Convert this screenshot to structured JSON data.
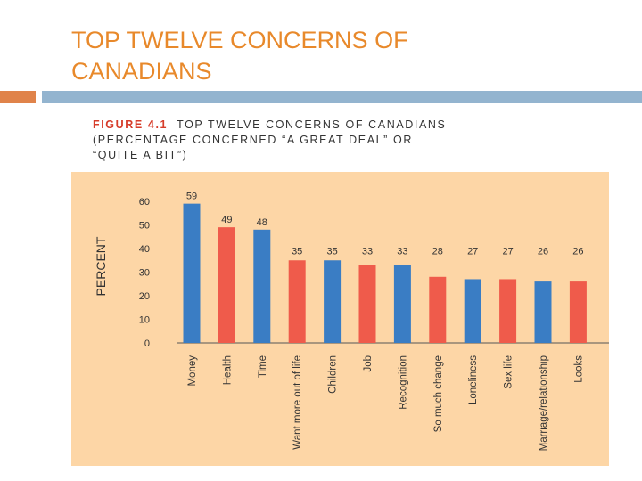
{
  "slide": {
    "title_line1": "TOP TWELVE CONCERNS OF",
    "title_line2": "CANADIANS"
  },
  "colors": {
    "title": "#e8892b",
    "accent_orange": "#e0834a",
    "accent_blue": "#93b4cf",
    "chart_background": "#fdd6a6",
    "bar_blue": "#3a7dc4",
    "bar_red": "#ef5b4b"
  },
  "figure": {
    "label": "FIGURE 4.1",
    "caption_line1": "TOP TWELVE CONCERNS OF CANADIANS",
    "caption_line2": "(PERCENTAGE CONCERNED “A GREAT DEAL” OR",
    "caption_line3": "“QUITE A BIT”)"
  },
  "chart_data": {
    "type": "bar",
    "title": "TOP TWELVE CONCERNS OF CANADIANS (PERCENTAGE CONCERNED “A GREAT DEAL” OR “QUITE A BIT”)",
    "xlabel": "",
    "ylabel": "PERCENT",
    "ylim": [
      0,
      60
    ],
    "yticks": [
      0,
      10,
      20,
      30,
      40,
      50,
      60
    ],
    "grid": false,
    "categories": [
      "Money",
      "Health",
      "Time",
      "Want more out of life",
      "Children",
      "Job",
      "Recognition",
      "So much change",
      "Loneliness",
      "Sex life",
      "Marriage/relationship",
      "Looks"
    ],
    "values": [
      59,
      49,
      48,
      35,
      35,
      33,
      33,
      28,
      27,
      27,
      26,
      26
    ],
    "bar_colors": [
      "blue",
      "red",
      "blue",
      "red",
      "blue",
      "red",
      "blue",
      "red",
      "blue",
      "red",
      "blue",
      "red"
    ]
  }
}
